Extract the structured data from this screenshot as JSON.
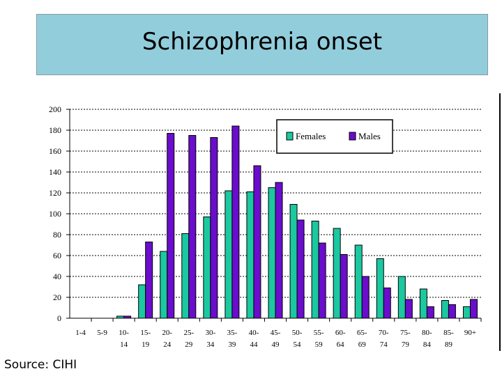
{
  "slide": {
    "title": "Schizophrenia onset",
    "source": "Source: CIHI"
  },
  "colors": {
    "title_bg": "#92cddc",
    "females": "#1bc8a0",
    "males": "#6a0dcc"
  },
  "chart_data": {
    "type": "bar",
    "title": "",
    "xlabel": "",
    "ylabel": "",
    "ylim": [
      0,
      200
    ],
    "yticks": [
      0,
      20,
      40,
      60,
      80,
      100,
      120,
      140,
      160,
      180,
      200
    ],
    "grid": true,
    "legend": "top-right",
    "categories": [
      [
        "1-4",
        ""
      ],
      [
        "5-9",
        ""
      ],
      [
        "10-",
        "14"
      ],
      [
        "15-",
        "19"
      ],
      [
        "20-",
        "24"
      ],
      [
        "25-",
        "29"
      ],
      [
        "30-",
        "34"
      ],
      [
        "35-",
        "39"
      ],
      [
        "40-",
        "44"
      ],
      [
        "45-",
        "49"
      ],
      [
        "50-",
        "54"
      ],
      [
        "55-",
        "59"
      ],
      [
        "60-",
        "64"
      ],
      [
        "65-",
        "69"
      ],
      [
        "70-",
        "74"
      ],
      [
        "75-",
        "79"
      ],
      [
        "80-",
        "84"
      ],
      [
        "85-",
        "89"
      ],
      [
        "90+",
        ""
      ]
    ],
    "series": [
      {
        "name": "Females",
        "values": [
          0,
          0,
          2,
          32,
          64,
          81,
          97,
          122,
          121,
          125,
          109,
          93,
          86,
          70,
          57,
          40,
          28,
          17,
          11
        ]
      },
      {
        "name": "Males",
        "values": [
          0,
          0,
          2,
          73,
          177,
          175,
          173,
          184,
          146,
          130,
          94,
          72,
          61,
          40,
          29,
          18,
          11,
          13,
          18
        ]
      }
    ]
  }
}
